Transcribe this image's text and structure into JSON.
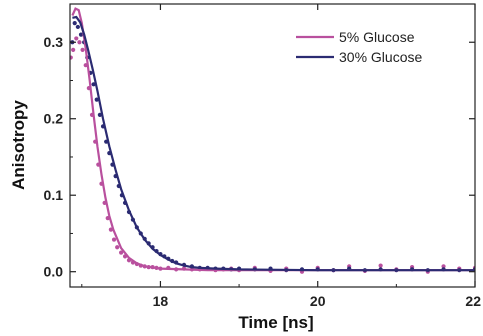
{
  "chart_data": {
    "type": "scatter",
    "xlabel": "Time [ns]",
    "ylabel": "Anisotropy",
    "xlim": [
      16.85,
      22.0
    ],
    "ylim": [
      -0.02,
      0.35
    ],
    "x_ticks": [
      18,
      20,
      22
    ],
    "y_ticks": [
      0.0,
      0.1,
      0.2,
      0.3
    ],
    "y_tick_labels": [
      "0.0",
      "0.1",
      "0.2",
      "0.3"
    ],
    "grid": false,
    "legend_position": "top-right",
    "series": [
      {
        "name": "5% Glucose",
        "color": "#b9509e",
        "fit": [
          [
            16.88,
            0.335
          ],
          [
            16.92,
            0.344
          ],
          [
            16.96,
            0.342
          ],
          [
            17.0,
            0.325
          ],
          [
            17.05,
            0.292
          ],
          [
            17.1,
            0.25
          ],
          [
            17.15,
            0.205
          ],
          [
            17.2,
            0.163
          ],
          [
            17.25,
            0.127
          ],
          [
            17.3,
            0.097
          ],
          [
            17.35,
            0.073
          ],
          [
            17.4,
            0.055
          ],
          [
            17.5,
            0.031
          ],
          [
            17.6,
            0.018
          ],
          [
            17.7,
            0.011
          ],
          [
            17.8,
            0.007
          ],
          [
            18.0,
            0.004
          ],
          [
            18.3,
            0.003
          ],
          [
            18.6,
            0.002
          ],
          [
            19.0,
            0.002
          ],
          [
            20.0,
            0.002
          ],
          [
            21.0,
            0.002
          ],
          [
            22.0,
            0.002
          ]
        ],
        "points": [
          [
            16.86,
            0.28
          ],
          [
            16.89,
            0.29
          ],
          [
            16.93,
            0.305
          ],
          [
            16.97,
            0.3
          ],
          [
            17.01,
            0.29
          ],
          [
            17.05,
            0.27
          ],
          [
            17.09,
            0.24
          ],
          [
            17.13,
            0.205
          ],
          [
            17.17,
            0.17
          ],
          [
            17.21,
            0.14
          ],
          [
            17.25,
            0.115
          ],
          [
            17.29,
            0.09
          ],
          [
            17.33,
            0.07
          ],
          [
            17.37,
            0.055
          ],
          [
            17.41,
            0.042
          ],
          [
            17.45,
            0.032
          ],
          [
            17.5,
            0.025
          ],
          [
            17.55,
            0.02
          ],
          [
            17.6,
            0.015
          ],
          [
            17.65,
            0.012
          ],
          [
            17.7,
            0.01
          ],
          [
            17.75,
            0.008
          ],
          [
            17.8,
            0.007
          ],
          [
            17.85,
            0.006
          ],
          [
            17.9,
            0.006
          ],
          [
            17.95,
            0.005
          ],
          [
            18.0,
            0.004
          ],
          [
            18.1,
            0.005
          ],
          [
            18.2,
            0.003
          ],
          [
            18.3,
            0.004
          ],
          [
            18.4,
            0.003
          ],
          [
            18.5,
            0.003
          ],
          [
            18.6,
            0.004
          ],
          [
            18.7,
            0.002
          ],
          [
            18.8,
            0.003
          ],
          [
            18.9,
            0.004
          ],
          [
            19.0,
            0.002
          ],
          [
            19.2,
            0.005
          ],
          [
            19.4,
            0.001
          ],
          [
            19.6,
            0.004
          ],
          [
            19.8,
            0.0
          ],
          [
            20.0,
            0.005
          ],
          [
            20.2,
            0.002
          ],
          [
            20.4,
            0.007
          ],
          [
            20.6,
            0.001
          ],
          [
            20.8,
            0.008
          ],
          [
            21.0,
            0.003
          ],
          [
            21.2,
            0.006
          ],
          [
            21.4,
            0.0
          ],
          [
            21.6,
            0.007
          ],
          [
            21.8,
            0.004
          ],
          [
            22.0,
            0.005
          ]
        ]
      },
      {
        "name": "30% Glucose",
        "color": "#2b2b72",
        "fit": [
          [
            16.88,
            0.332
          ],
          [
            16.93,
            0.333
          ],
          [
            16.98,
            0.326
          ],
          [
            17.03,
            0.31
          ],
          [
            17.08,
            0.29
          ],
          [
            17.14,
            0.264
          ],
          [
            17.2,
            0.236
          ],
          [
            17.27,
            0.2
          ],
          [
            17.35,
            0.164
          ],
          [
            17.43,
            0.133
          ],
          [
            17.5,
            0.108
          ],
          [
            17.6,
            0.08
          ],
          [
            17.7,
            0.058
          ],
          [
            17.8,
            0.042
          ],
          [
            17.9,
            0.03
          ],
          [
            18.0,
            0.022
          ],
          [
            18.1,
            0.016
          ],
          [
            18.2,
            0.011
          ],
          [
            18.3,
            0.008
          ],
          [
            18.4,
            0.006
          ],
          [
            18.5,
            0.005
          ],
          [
            18.7,
            0.004
          ],
          [
            19.0,
            0.003
          ],
          [
            20.0,
            0.002
          ],
          [
            21.0,
            0.002
          ],
          [
            22.0,
            0.002
          ]
        ],
        "points": [
          [
            16.88,
            0.3
          ],
          [
            16.91,
            0.325
          ],
          [
            16.95,
            0.32
          ],
          [
            16.99,
            0.31
          ],
          [
            17.03,
            0.3
          ],
          [
            17.07,
            0.28
          ],
          [
            17.11,
            0.26
          ],
          [
            17.15,
            0.245
          ],
          [
            17.19,
            0.225
          ],
          [
            17.23,
            0.205
          ],
          [
            17.27,
            0.19
          ],
          [
            17.31,
            0.17
          ],
          [
            17.35,
            0.155
          ],
          [
            17.39,
            0.14
          ],
          [
            17.43,
            0.125
          ],
          [
            17.47,
            0.112
          ],
          [
            17.51,
            0.1
          ],
          [
            17.55,
            0.09
          ],
          [
            17.6,
            0.078
          ],
          [
            17.65,
            0.068
          ],
          [
            17.7,
            0.058
          ],
          [
            17.75,
            0.05
          ],
          [
            17.8,
            0.043
          ],
          [
            17.85,
            0.037
          ],
          [
            17.9,
            0.032
          ],
          [
            17.95,
            0.027
          ],
          [
            18.0,
            0.023
          ],
          [
            18.05,
            0.02
          ],
          [
            18.1,
            0.017
          ],
          [
            18.15,
            0.014
          ],
          [
            18.2,
            0.012
          ],
          [
            18.3,
            0.009
          ],
          [
            18.4,
            0.007
          ],
          [
            18.5,
            0.005
          ],
          [
            18.6,
            0.005
          ],
          [
            18.7,
            0.004
          ],
          [
            18.8,
            0.004
          ],
          [
            18.9,
            0.003
          ],
          [
            19.0,
            0.004
          ],
          [
            19.2,
            0.003
          ],
          [
            19.4,
            0.004
          ],
          [
            19.6,
            0.002
          ],
          [
            19.8,
            0.003
          ],
          [
            20.0,
            0.003
          ],
          [
            20.2,
            0.002
          ],
          [
            20.4,
            0.004
          ],
          [
            20.6,
            0.002
          ],
          [
            20.8,
            0.003
          ],
          [
            21.0,
            0.002
          ],
          [
            21.2,
            0.003
          ],
          [
            21.4,
            0.002
          ],
          [
            21.6,
            0.003
          ],
          [
            21.8,
            0.002
          ],
          [
            22.0,
            0.003
          ]
        ]
      }
    ]
  }
}
